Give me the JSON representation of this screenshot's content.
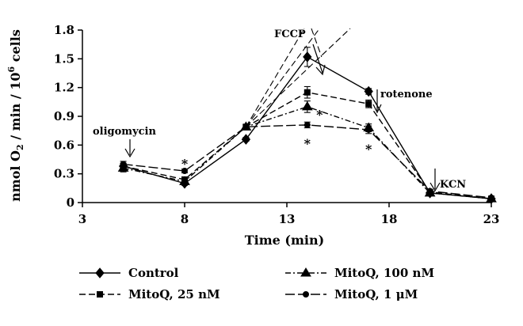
{
  "chart_data": {
    "type": "line",
    "xlabel": "Time (min)",
    "ylabel": "nmol O₂ / min / 10⁶ cells",
    "ylabel_parts": {
      "main": "nmol O",
      "sub": "2",
      "mid": " / min / 10",
      "sup": "6",
      "end": " cells"
    },
    "xlim": [
      3,
      23
    ],
    "ylim": [
      0,
      1.8
    ],
    "xticks": [
      3,
      8,
      13,
      18,
      23
    ],
    "yticks": [
      0,
      0.3,
      0.6,
      0.9,
      1.2,
      1.5,
      1.8
    ],
    "ytick_labels": [
      "0",
      "0.3",
      "0.6",
      "0.9",
      "1.2",
      "1.5",
      "1.8"
    ],
    "legend_placement": "bottom",
    "grid": false,
    "series": [
      {
        "name": "Control",
        "marker": "diamond",
        "dash": "",
        "x": [
          5,
          8,
          11,
          14,
          17,
          20,
          23
        ],
        "y": [
          0.38,
          0.2,
          0.66,
          1.52,
          1.16,
          0.1,
          0.04
        ],
        "err": [
          0.03,
          0.02,
          0.02,
          0.1,
          0.03,
          0.01,
          0.01
        ]
      },
      {
        "name": "MitoQ, 25 nM",
        "marker": "square",
        "dash": "8,4",
        "x": [
          5,
          8,
          11,
          14,
          17,
          20,
          23
        ],
        "y": [
          0.38,
          0.24,
          0.79,
          1.15,
          1.03,
          0.11,
          0.04
        ],
        "err": [
          0.03,
          0.02,
          0.02,
          0.06,
          0.04,
          0.01,
          0.01
        ]
      },
      {
        "name": "MitoQ, 100 nM",
        "marker": "triangle",
        "dash": "7,3,2,3",
        "x": [
          5,
          8,
          11,
          14,
          17,
          20,
          23
        ],
        "y": [
          0.36,
          0.22,
          0.79,
          1.0,
          0.78,
          0.1,
          0.04
        ],
        "err": [
          0.04,
          0.02,
          0.02,
          0.06,
          0.04,
          0.01,
          0.01
        ]
      },
      {
        "name": "MitoQ, 1 μM",
        "marker": "circle",
        "dash": "12,4",
        "x": [
          5,
          8,
          11,
          14,
          17,
          20,
          23
        ],
        "y": [
          0.4,
          0.33,
          0.79,
          0.81,
          0.76,
          0.12,
          0.05
        ],
        "err": [
          0.03,
          0.02,
          0.02,
          0.03,
          0.04,
          0.01,
          0.01
        ]
      }
    ],
    "annotations": [
      {
        "id": "oligomycin",
        "text": "oligomycin"
      },
      {
        "id": "fccp",
        "text": "FCCP"
      },
      {
        "id": "rotenone",
        "text": "rotenone"
      },
      {
        "id": "kcn",
        "text": "KCN"
      }
    ],
    "significance": [
      {
        "x": 8,
        "y": 0.41,
        "text": "*"
      },
      {
        "x": 14.6,
        "y": 0.92,
        "text": "*"
      },
      {
        "x": 14,
        "y": 0.62,
        "text": "*"
      },
      {
        "x": 17,
        "y": 0.56,
        "text": "*"
      }
    ]
  }
}
